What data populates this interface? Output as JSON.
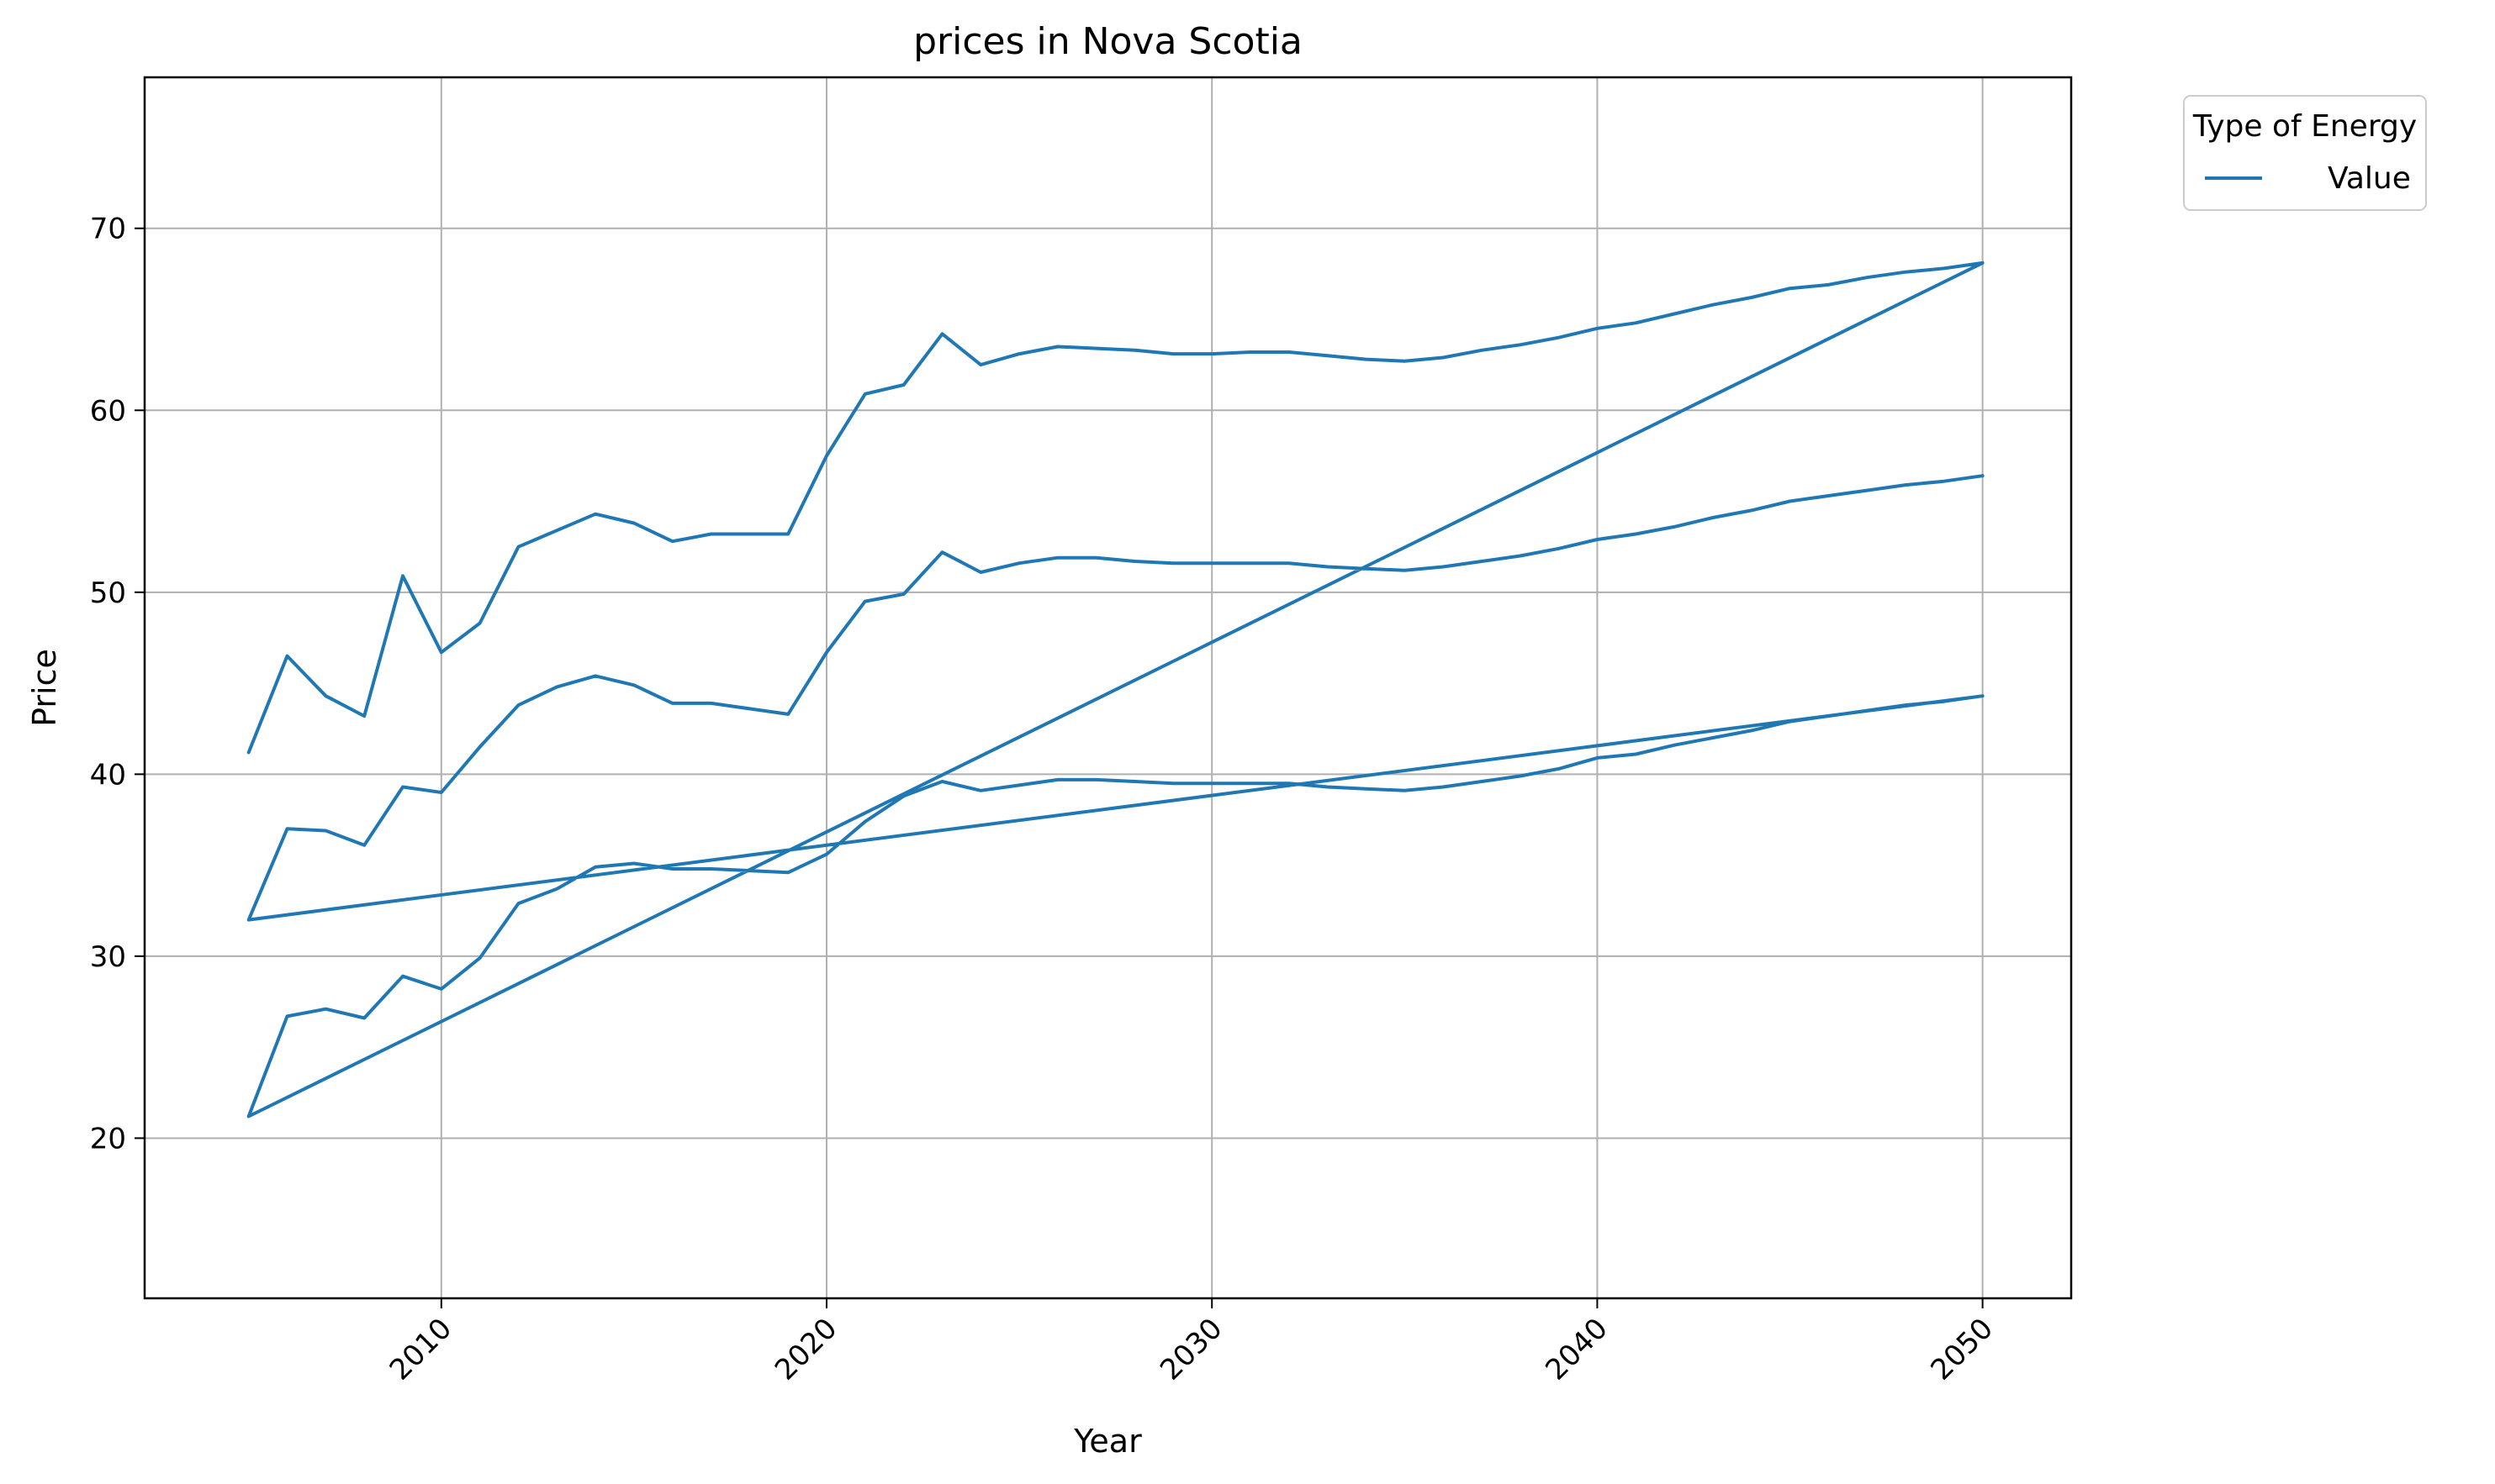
{
  "chart_data": {
    "type": "line",
    "title": "prices in Nova Scotia",
    "xlabel": "Year",
    "ylabel": "Price",
    "xlim": [
      2002.3,
      2052.3
    ],
    "ylim": [
      11.2,
      78.3
    ],
    "xticks": [
      2010,
      2020,
      2030,
      2040,
      2050
    ],
    "yticks": [
      20,
      30,
      40,
      50,
      60,
      70
    ],
    "grid": true,
    "legend": {
      "title": "Type of Energy",
      "position": "outside-top-right",
      "entries": [
        "Value"
      ]
    },
    "series": [
      {
        "name": "Value",
        "color": "#1f77b4",
        "x": [
          2005,
          2006,
          2007,
          2008,
          2009,
          2010,
          2011,
          2012,
          2013,
          2014,
          2015,
          2016,
          2017,
          2018,
          2019,
          2020,
          2021,
          2022,
          2023,
          2024,
          2025,
          2026,
          2027,
          2028,
          2029,
          2030,
          2031,
          2032,
          2033,
          2034,
          2035,
          2036,
          2037,
          2038,
          2039,
          2040,
          2041,
          2042,
          2043,
          2044,
          2045,
          2046,
          2047,
          2048,
          2049,
          2050,
          2005,
          2006,
          2007,
          2008,
          2009,
          2010,
          2011,
          2012,
          2013,
          2014,
          2015,
          2016,
          2017,
          2018,
          2019,
          2020,
          2021,
          2022,
          2023,
          2024,
          2025,
          2026,
          2027,
          2028,
          2029,
          2030,
          2031,
          2032,
          2033,
          2034,
          2035,
          2036,
          2037,
          2038,
          2039,
          2040,
          2041,
          2042,
          2043,
          2044,
          2045,
          2046,
          2047,
          2048,
          2049,
          2050,
          2005,
          2006,
          2007,
          2008,
          2009,
          2010,
          2011,
          2012,
          2013,
          2014,
          2015,
          2016,
          2017,
          2018,
          2019,
          2020,
          2021,
          2022,
          2023,
          2024,
          2025,
          2026,
          2027,
          2028,
          2029,
          2030,
          2031,
          2032,
          2033,
          2034,
          2035,
          2036,
          2037,
          2038,
          2039,
          2040,
          2041,
          2042,
          2043,
          2044,
          2045,
          2046,
          2047,
          2048,
          2049,
          2050
        ],
        "y": [
          41.2,
          46.5,
          44.3,
          43.2,
          50.9,
          46.7,
          48.3,
          52.5,
          53.4,
          54.3,
          53.8,
          52.8,
          53.2,
          53.2,
          53.2,
          57.5,
          60.9,
          61.4,
          64.2,
          62.5,
          63.1,
          63.5,
          63.4,
          63.3,
          63.1,
          63.1,
          63.2,
          63.2,
          63.0,
          62.8,
          62.7,
          62.9,
          63.3,
          63.6,
          64.0,
          64.5,
          64.8,
          65.3,
          65.8,
          66.2,
          66.7,
          66.9,
          67.3,
          67.6,
          67.8,
          68.1,
          21.2,
          26.7,
          27.1,
          26.6,
          28.9,
          28.2,
          29.9,
          32.9,
          33.7,
          34.9,
          35.1,
          34.8,
          34.8,
          34.7,
          34.6,
          35.6,
          37.4,
          38.8,
          39.6,
          39.1,
          39.4,
          39.7,
          39.7,
          39.6,
          39.5,
          39.5,
          39.5,
          39.5,
          39.3,
          39.2,
          39.1,
          39.3,
          39.6,
          39.9,
          40.3,
          40.9,
          41.1,
          41.6,
          42.0,
          42.4,
          42.9,
          43.2,
          43.5,
          43.8,
          44.0,
          44.3,
          32.0,
          37.0,
          36.9,
          36.1,
          39.3,
          39.0,
          41.5,
          43.8,
          44.8,
          45.4,
          44.9,
          43.9,
          43.9,
          43.6,
          43.3,
          46.7,
          49.5,
          49.9,
          52.2,
          51.1,
          51.6,
          51.9,
          51.9,
          51.7,
          51.6,
          51.6,
          51.6,
          51.6,
          51.4,
          51.3,
          51.2,
          51.4,
          51.7,
          52.0,
          52.4,
          52.9,
          53.2,
          53.6,
          54.1,
          54.5,
          55.0,
          55.3,
          55.6,
          55.9,
          56.1,
          56.4
        ]
      }
    ]
  }
}
